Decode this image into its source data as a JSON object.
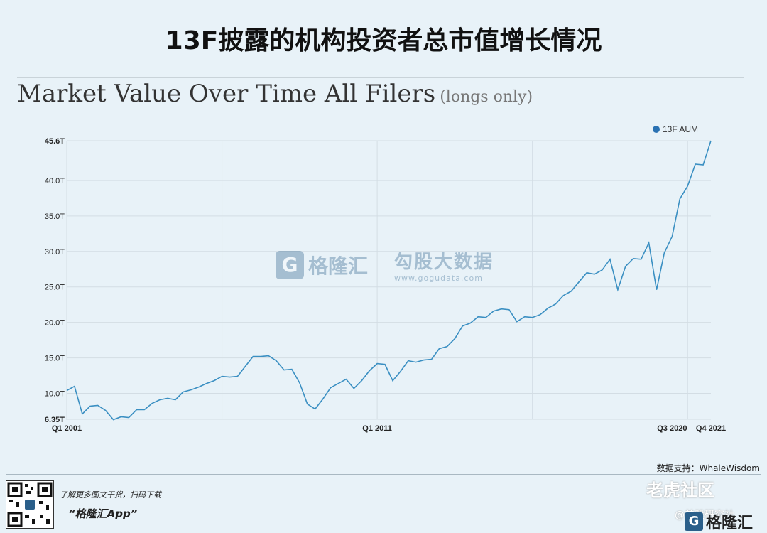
{
  "page_title": "13F披露的机构投资者总市值增长情况",
  "chart_data": {
    "type": "line",
    "title": "Market Value Over Time All Filers",
    "subtitle": "(longs only)",
    "legend": {
      "label": "13F AUM",
      "placement": "top-right"
    },
    "series_color": "#3a8fc2",
    "ylim": [
      6.35,
      45.6
    ],
    "y_ticks": [
      {
        "value": 6.35,
        "label": "6.35T"
      },
      {
        "value": 10,
        "label": "10.0T"
      },
      {
        "value": 15,
        "label": "15.0T"
      },
      {
        "value": 20,
        "label": "20.0T"
      },
      {
        "value": 25,
        "label": "25.0T"
      },
      {
        "value": 30,
        "label": "30.0T"
      },
      {
        "value": 35,
        "label": "35.0T"
      },
      {
        "value": 40,
        "label": "40.0T"
      },
      {
        "value": 45.6,
        "label": "45.6T"
      }
    ],
    "x_ticks": [
      {
        "index": 0,
        "label": "Q1 2001"
      },
      {
        "index": 40,
        "label": "Q1 2011"
      },
      {
        "index": 78,
        "label": "Q3 2020"
      },
      {
        "index": 83,
        "label": "Q4 2021"
      }
    ],
    "x_labels_first": "Q1 2001",
    "values": [
      10.4,
      11.0,
      7.1,
      8.2,
      8.3,
      7.6,
      6.3,
      6.7,
      6.6,
      7.7,
      7.7,
      8.6,
      9.1,
      9.3,
      9.1,
      10.2,
      10.5,
      10.9,
      11.4,
      11.8,
      12.4,
      12.3,
      12.4,
      13.8,
      15.2,
      15.2,
      15.3,
      14.6,
      13.3,
      13.4,
      11.5,
      8.5,
      7.8,
      9.2,
      10.8,
      11.4,
      12.0,
      10.7,
      11.8,
      13.2,
      14.2,
      14.1,
      11.8,
      13.1,
      14.6,
      14.4,
      14.7,
      14.8,
      16.3,
      16.6,
      17.7,
      19.5,
      19.9,
      20.8,
      20.7,
      21.6,
      21.9,
      21.8,
      20.1,
      20.8,
      20.7,
      21.1,
      22.0,
      22.6,
      23.8,
      24.4,
      25.7,
      27.0,
      26.8,
      27.4,
      28.9,
      24.6,
      27.9,
      29.0,
      28.9,
      31.2,
      24.6,
      29.8,
      32.1,
      37.4,
      39.2,
      42.3,
      42.2,
      45.6
    ]
  },
  "watermark": {
    "logo_letter": "G",
    "name": "格隆汇",
    "name2": "勾股大数据",
    "url": "www.gogudata.com"
  },
  "source_note": "数据支持：WhaleWisdom",
  "footer": {
    "promo_line": "了解更多图文干货，扫码下载",
    "promo_app": "“格隆汇App”",
    "brand_logo_letter": "G",
    "brand_name": "格隆汇",
    "corner_mark": "老虎社区",
    "corner_mark2": "@美股研究社"
  }
}
